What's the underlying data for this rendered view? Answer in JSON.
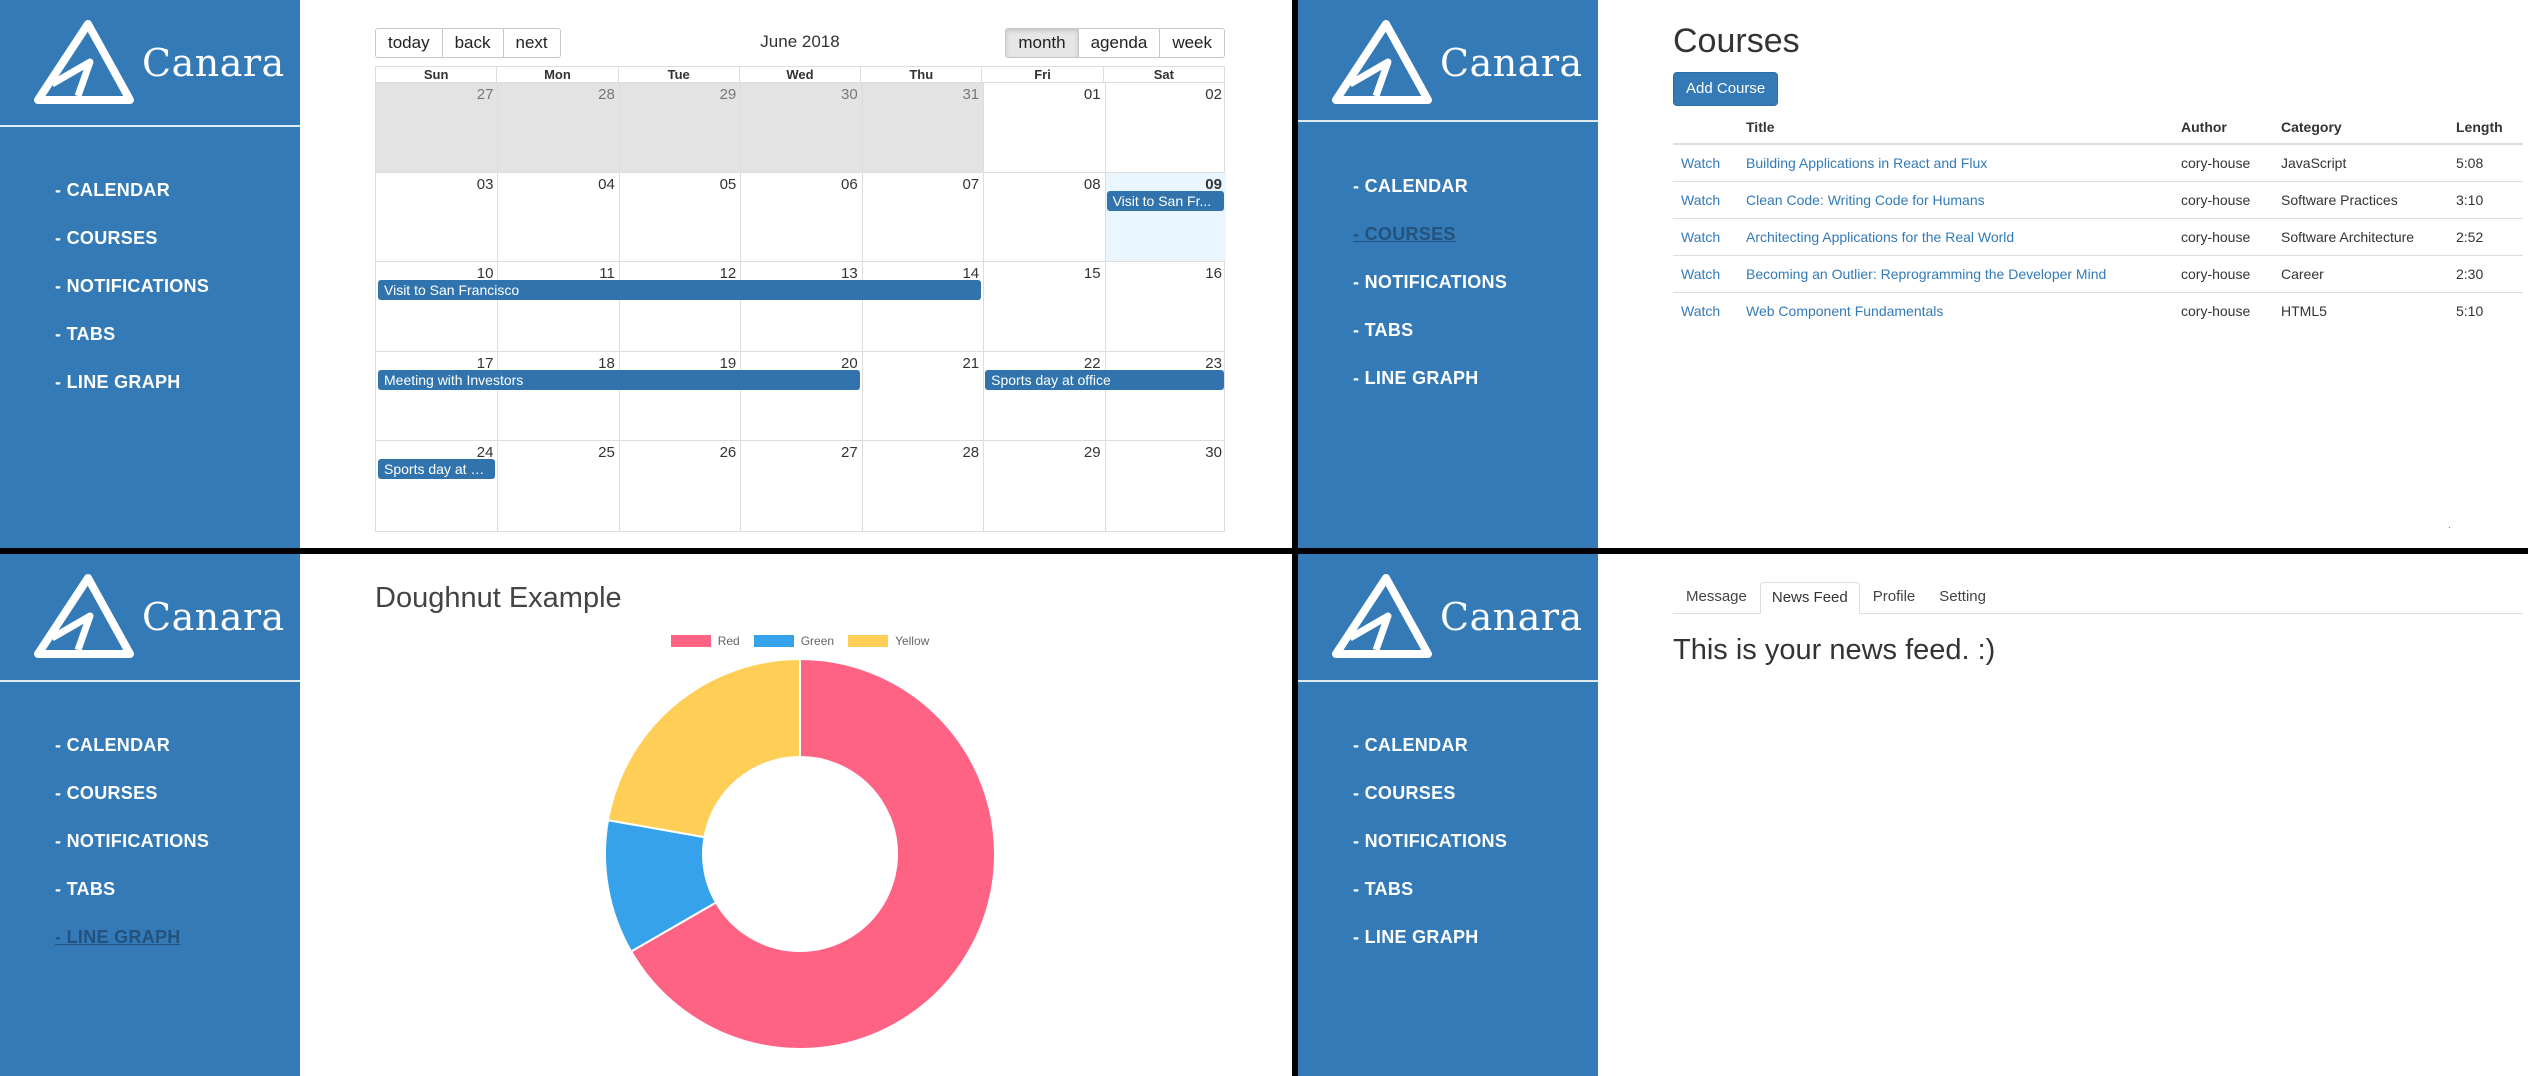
{
  "brand": {
    "name": "Canara"
  },
  "nav": {
    "items": [
      "- CALENDAR",
      "- COURSES",
      "- NOTIFICATIONS",
      "- TABS",
      "- LINE GRAPH"
    ]
  },
  "calendar": {
    "nav_buttons": [
      "today",
      "back",
      "next"
    ],
    "label": "June 2018",
    "view_buttons": [
      "month",
      "agenda",
      "week"
    ],
    "active_view": "month",
    "weekdays": [
      "Sun",
      "Mon",
      "Tue",
      "Wed",
      "Thu",
      "Fri",
      "Sat"
    ],
    "weeks": [
      [
        "27",
        "28",
        "29",
        "30",
        "31",
        "01",
        "02"
      ],
      [
        "03",
        "04",
        "05",
        "06",
        "07",
        "08",
        "09"
      ],
      [
        "10",
        "11",
        "12",
        "13",
        "14",
        "15",
        "16"
      ],
      [
        "17",
        "18",
        "19",
        "20",
        "21",
        "22",
        "23"
      ],
      [
        "24",
        "25",
        "26",
        "27",
        "28",
        "29",
        "30"
      ]
    ],
    "events": [
      {
        "title": "Visit to San Fr...",
        "week": 1,
        "start": 6,
        "span": 1
      },
      {
        "title": "Visit to San Francisco",
        "week": 2,
        "start": 0,
        "span": 5
      },
      {
        "title": "Meeting with Investors",
        "week": 3,
        "start": 0,
        "span": 4
      },
      {
        "title": "Sports day at office",
        "week": 3,
        "start": 5,
        "span": 2
      },
      {
        "title": "Sports day at o...",
        "week": 4,
        "start": 0,
        "span": 1
      }
    ]
  },
  "courses": {
    "title": "Courses",
    "add_button": "Add Course",
    "columns": [
      "",
      "Title",
      "Author",
      "Category",
      "Length"
    ],
    "rows": [
      {
        "watch": "Watch",
        "title": "Building Applications in React and Flux",
        "author": "cory-house",
        "category": "JavaScript",
        "length": "5:08"
      },
      {
        "watch": "Watch",
        "title": "Clean Code: Writing Code for Humans",
        "author": "cory-house",
        "category": "Software Practices",
        "length": "3:10"
      },
      {
        "watch": "Watch",
        "title": "Architecting Applications for the Real World",
        "author": "cory-house",
        "category": "Software Architecture",
        "length": "2:52"
      },
      {
        "watch": "Watch",
        "title": "Becoming an Outlier: Reprogramming the Developer Mind",
        "author": "cory-house",
        "category": "Career",
        "length": "2:30"
      },
      {
        "watch": "Watch",
        "title": "Web Component Fundamentals",
        "author": "cory-house",
        "category": "HTML5",
        "length": "5:10"
      }
    ],
    "footer_mark": "."
  },
  "chart": {
    "title": "Doughnut Example"
  },
  "chart_data": {
    "type": "pie",
    "title": "Doughnut Example",
    "categories": [
      "Red",
      "Green",
      "Yellow"
    ],
    "values": [
      300,
      50,
      100
    ],
    "colors": [
      "#ff6384",
      "#36a2eb",
      "#ffce56"
    ],
    "legend": "top"
  },
  "tabs": {
    "items": [
      "Message",
      "News Feed",
      "Profile",
      "Setting"
    ],
    "active": "News Feed",
    "content": "This is your news feed. :)"
  }
}
